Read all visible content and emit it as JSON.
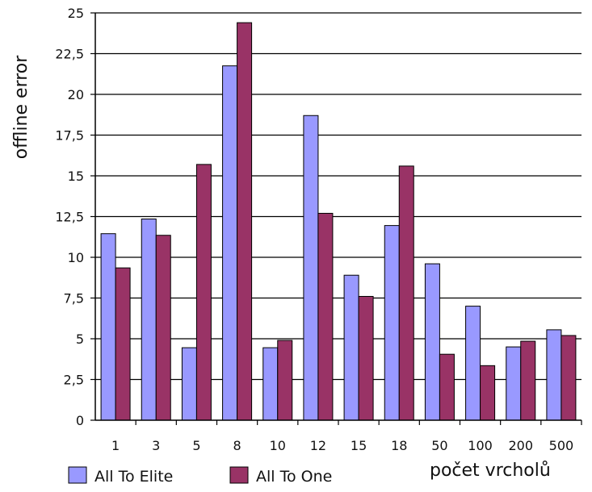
{
  "chart_data": {
    "type": "bar",
    "title": "",
    "xlabel": "počet vrcholů",
    "ylabel": "offline error",
    "ylim": [
      0,
      25
    ],
    "yticks": [
      "0",
      "2,5",
      "5",
      "7,5",
      "10",
      "12,5",
      "15",
      "17,5",
      "20",
      "22,5",
      "25"
    ],
    "grid": true,
    "legend_position": "bottom-left",
    "categories": [
      "1",
      "3",
      "5",
      "8",
      "10",
      "12",
      "15",
      "18",
      "50",
      "100",
      "200",
      "500"
    ],
    "series": [
      {
        "name": "All To Elite",
        "color": "#9999ff",
        "values": [
          11.45,
          12.35,
          4.45,
          21.75,
          4.45,
          18.7,
          8.9,
          11.95,
          9.6,
          7.0,
          4.5,
          5.55
        ]
      },
      {
        "name": "All To One",
        "color": "#993366",
        "values": [
          9.35,
          11.35,
          15.7,
          24.4,
          4.9,
          12.7,
          7.6,
          15.6,
          4.05,
          3.35,
          4.85,
          5.2
        ]
      }
    ]
  }
}
